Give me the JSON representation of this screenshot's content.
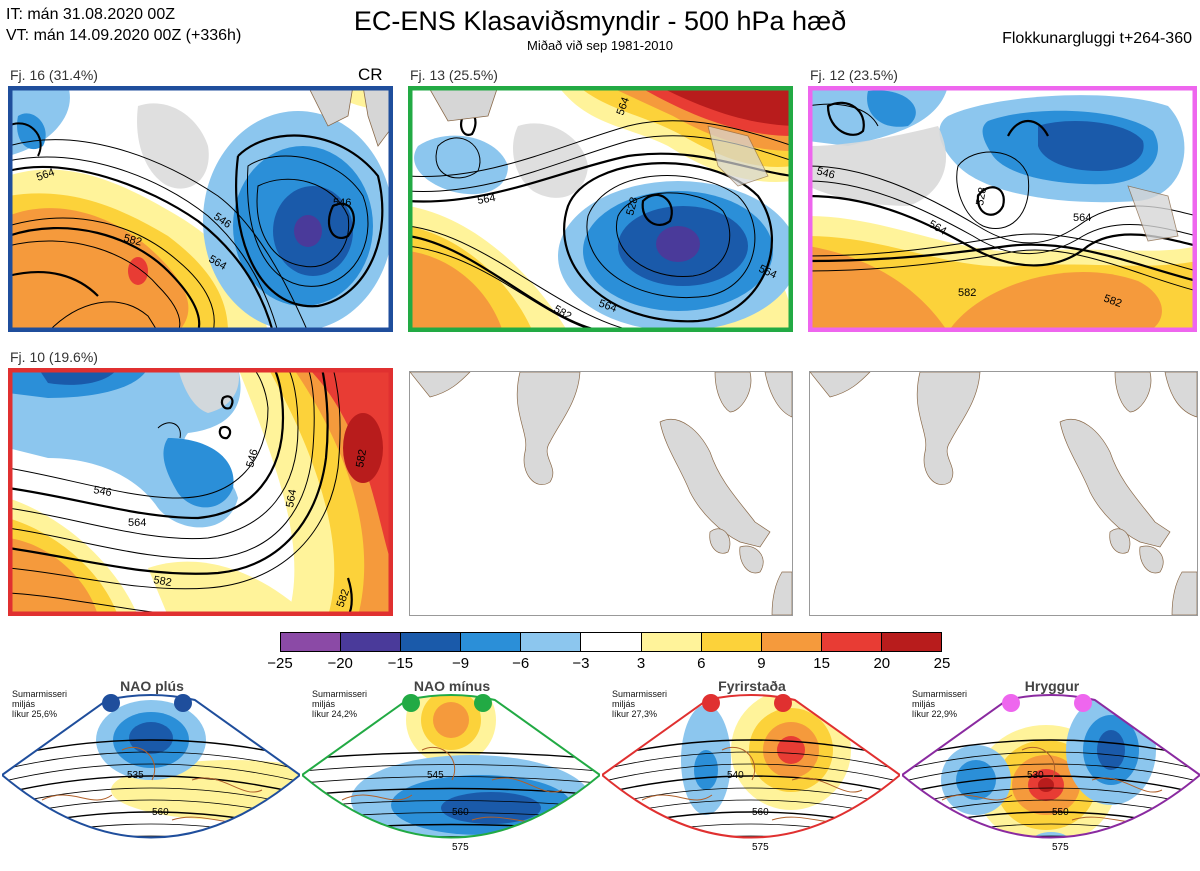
{
  "header": {
    "it_line": "IT: mán 31.08.2020 00Z",
    "vt_line": "VT: mán 14.09.2020 00Z  (+336h)",
    "title": "EC-ENS Klasaviðsmyndir - 500 hPa hæð",
    "subtitle": "Miðað við sep 1981-2010",
    "window": "Flokkunargluggi t+264-360"
  },
  "clusters": [
    {
      "label": "Fj. 16 (31.4%)",
      "color": "#1f4e9c",
      "tag": "CR",
      "contours": [
        "546",
        "564",
        "582"
      ]
    },
    {
      "label": "Fj. 13 (25.5%)",
      "color": "#22aa44",
      "contours": [
        "546",
        "528",
        "564",
        "582"
      ]
    },
    {
      "label": "Fj. 12 (23.5%)",
      "color": "#ee66ee",
      "contours": [
        "528",
        "546",
        "564",
        "582"
      ]
    },
    {
      "label": "Fj. 10 (19.6%)",
      "color": "#e03030",
      "contours": [
        "546",
        "564",
        "582"
      ]
    }
  ],
  "colorbar": {
    "ticks": [
      "−25",
      "−20",
      "−15",
      "−9",
      "−6",
      "−3",
      "3",
      "6",
      "9",
      "15",
      "20",
      "25"
    ],
    "colors": [
      "#8b4aa6",
      "#4a3a9a",
      "#1a5aaa",
      "#2b8fd8",
      "#8cc6ee",
      "#ffffff",
      "#fff39a",
      "#fcd23a",
      "#f59a3c",
      "#e83c34",
      "#b81c1c"
    ]
  },
  "regimes": [
    {
      "name": "NAO plús",
      "note": "Sumarmisseri\nmiljás\nlíkur 25,6%",
      "frame": "#1f4e9c",
      "dot": "#1f4e9c",
      "labels": [
        "535",
        "560"
      ]
    },
    {
      "name": "NAO mínus",
      "note": "Sumarmisseri\nmiljás\nlíkur 24,2%",
      "frame": "#22aa44",
      "dot": "#22aa44",
      "labels": [
        "545",
        "560",
        "575"
      ]
    },
    {
      "name": "Fyrirstaða",
      "note": "Sumarmisseri\nmiljás\nlíkur 27,3%",
      "frame": "#e03030",
      "dot": "#e03030",
      "labels": [
        "540",
        "560",
        "575"
      ]
    },
    {
      "name": "Hryggur",
      "note": "Sumarmisseri\nmiljás\nlíkur 22,9%",
      "frame": "#8a2aa0",
      "dot": "#ee66ee",
      "labels": [
        "530",
        "550",
        "575"
      ]
    }
  ]
}
